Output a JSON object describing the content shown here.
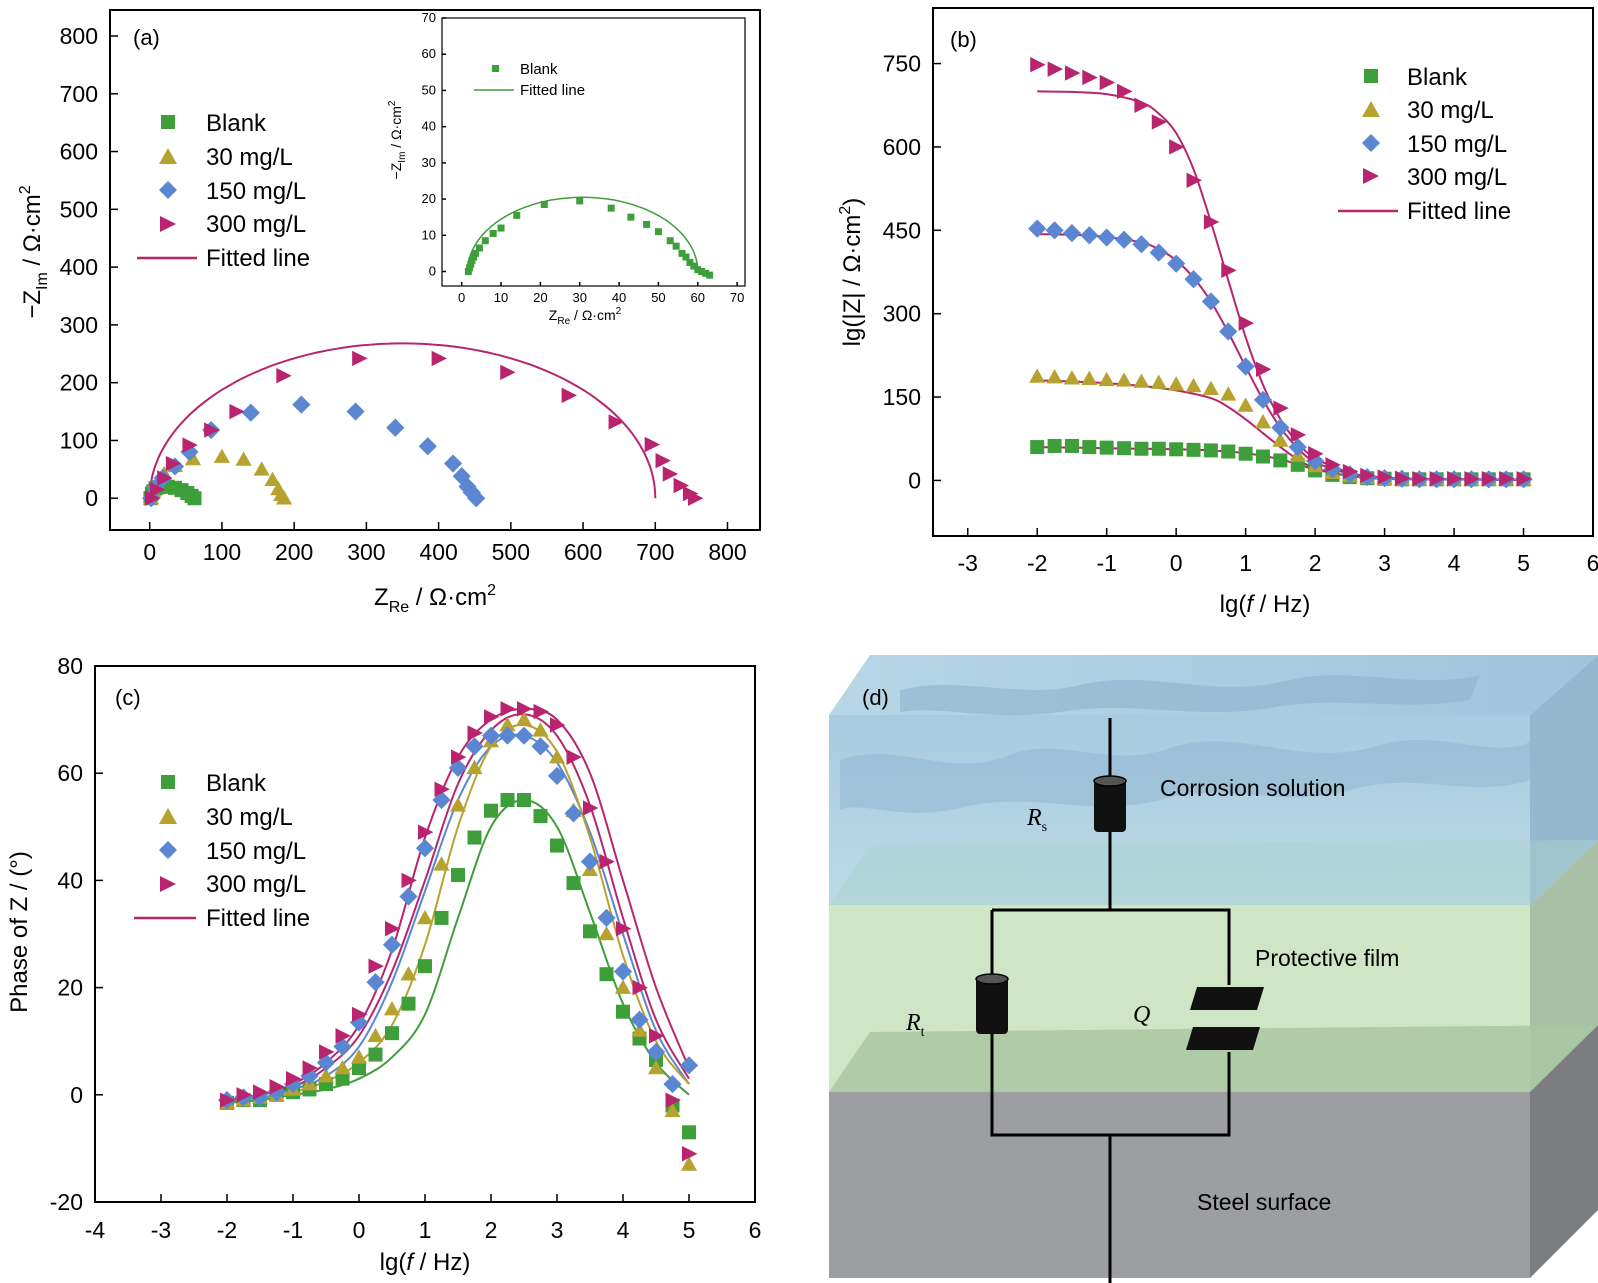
{
  "colors": {
    "blank": "#3e9e3a",
    "c30": "#b6a22f",
    "c150": "#5b86d2",
    "c300": "#b8246e",
    "fit_a_b_c": "#b8246e",
    "fit_inset": "#3e9e3a"
  },
  "panels": {
    "a": {
      "label": "(a)"
    },
    "b": {
      "label": "(b)"
    },
    "c": {
      "label": "(c)"
    },
    "d": {
      "label": "(d)",
      "corrosion_solution": "Corrosion solution",
      "protective_film": "Protective film",
      "steel_surface": "Steel surface",
      "rs": "R",
      "rs_sub": "s",
      "rt": "R",
      "rt_sub": "t",
      "q": "Q"
    }
  },
  "legend": {
    "blank": "Blank",
    "c30": "30   mg/L",
    "c150": "150 mg/L",
    "c300": "300 mg/L",
    "fitted": "Fitted line"
  },
  "chart_data": [
    {
      "id": "a",
      "type": "scatter",
      "title": "",
      "xlabel": "Z_Re / Ω·cm²",
      "ylabel": "−Z_Im / Ω·cm²",
      "xlim": [
        -55,
        845
      ],
      "ylim": [
        -55,
        845
      ],
      "xticks": [
        0,
        100,
        200,
        300,
        400,
        500,
        600,
        700,
        800
      ],
      "yticks": [
        0,
        100,
        200,
        300,
        400,
        500,
        600,
        700,
        800
      ],
      "series": [
        {
          "name": "Blank",
          "marker": "square",
          "x": [
            1,
            3,
            5,
            8,
            12,
            17,
            25,
            35,
            44,
            52,
            58,
            62
          ],
          "y": [
            0,
            8,
            12,
            17,
            19,
            20,
            20,
            18,
            14,
            9,
            4,
            0
          ]
        },
        {
          "name": "30   mg/L",
          "marker": "triangle",
          "x": [
            2,
            5,
            10,
            20,
            35,
            60,
            100,
            130,
            155,
            170,
            178,
            182,
            186
          ],
          "y": [
            0,
            12,
            25,
            42,
            56,
            68,
            72,
            67,
            50,
            32,
            16,
            6,
            0
          ]
        },
        {
          "name": "150 mg/L",
          "marker": "diamond",
          "x": [
            2,
            8,
            18,
            35,
            55,
            85,
            140,
            210,
            285,
            340,
            385,
            420,
            432,
            440,
            446,
            452
          ],
          "y": [
            0,
            18,
            35,
            55,
            80,
            118,
            148,
            162,
            150,
            122,
            90,
            60,
            38,
            20,
            10,
            0
          ]
        },
        {
          "name": "300 mg/L",
          "marker": "triangle-right",
          "x": [
            3,
            10,
            20,
            32,
            55,
            85,
            120,
            185,
            290,
            400,
            495,
            580,
            645,
            695,
            710,
            720,
            735,
            748,
            755
          ],
          "y": [
            0,
            15,
            35,
            60,
            92,
            118,
            150,
            212,
            242,
            242,
            218,
            178,
            132,
            93,
            65,
            42,
            22,
            8,
            0
          ]
        }
      ],
      "fits": [
        {
          "name": "Fitted line",
          "color": "fit_a_b_c",
          "type": "semicircle",
          "x_from": 0,
          "x_to": 700,
          "ymax": 268
        }
      ],
      "inset": {
        "xlabel": "Z_Re / Ω·cm²",
        "ylabel": "−Z_Im / Ω·cm²",
        "xlim": [
          -5,
          72
        ],
        "ylim": [
          -4,
          70
        ],
        "xticks": [
          0,
          10,
          20,
          30,
          40,
          50,
          60,
          70
        ],
        "yticks": [
          0,
          10,
          20,
          30,
          40,
          50,
          60,
          70
        ],
        "series": [
          {
            "name": "Blank",
            "marker": "square",
            "x": [
              1.7,
              2.0,
              2.3,
              2.6,
              3,
              3.5,
              4.5,
              6,
              8,
              10,
              14,
              21,
              30,
              38,
              43,
              47,
              50,
              53,
              54.5,
              56,
              57,
              58,
              59,
              60,
              61,
              62,
              63
            ],
            "y": [
              0,
              1,
              2,
              3,
              4,
              5,
              6.5,
              8.5,
              10.5,
              12,
              15.5,
              18.5,
              19.5,
              17.5,
              15,
              13,
              11,
              8.5,
              7,
              5,
              4,
              2.5,
              1.5,
              0.5,
              0,
              -0.5,
              -1
            ]
          }
        ],
        "fit": {
          "name": "Fitted line",
          "type": "semicircle",
          "x_from": 1.5,
          "x_to": 60,
          "ymax": 20.5
        },
        "legend": {
          "blank": "Blank",
          "fitted": "Fitted line"
        }
      }
    },
    {
      "id": "b",
      "type": "scatter",
      "title": "",
      "xlabel": "lg(f / Hz)",
      "ylabel": "lg(|Z| / Ω·cm²)",
      "xlim": [
        -3.5,
        6
      ],
      "ylim": [
        -100,
        850
      ],
      "xticks": [
        -3,
        -2,
        -1,
        0,
        1,
        2,
        3,
        4,
        5,
        6
      ],
      "yticks": [
        0,
        150,
        300,
        450,
        600,
        750
      ],
      "x": [
        -2,
        -1.75,
        -1.5,
        -1.25,
        -1,
        -0.75,
        -0.5,
        -0.25,
        0,
        0.25,
        0.5,
        0.75,
        1,
        1.25,
        1.5,
        1.75,
        2,
        2.25,
        2.5,
        2.75,
        3,
        3.25,
        3.5,
        3.75,
        4,
        4.25,
        4.5,
        4.75,
        5
      ],
      "series": [
        {
          "name": "Blank",
          "marker": "square",
          "y": [
            60,
            62,
            62,
            60,
            59,
            58,
            57,
            57,
            56,
            55,
            54,
            52,
            48,
            43,
            36,
            28,
            18,
            10,
            6,
            4,
            3,
            2,
            2,
            2,
            2,
            2,
            2,
            2,
            2
          ]
        },
        {
          "name": "30   mg/L",
          "marker": "triangle",
          "y": [
            187,
            186,
            184,
            183,
            181,
            180,
            178,
            176,
            173,
            170,
            165,
            155,
            135,
            105,
            72,
            45,
            26,
            14,
            8,
            5,
            3,
            2,
            2,
            2,
            2,
            2,
            2,
            2,
            2
          ]
        },
        {
          "name": "150 mg/L",
          "marker": "diamond",
          "y": [
            453,
            450,
            445,
            441,
            437,
            433,
            425,
            410,
            390,
            362,
            322,
            268,
            205,
            145,
            95,
            60,
            35,
            20,
            11,
            6,
            4,
            3,
            2,
            2,
            2,
            2,
            2,
            2,
            2
          ]
        },
        {
          "name": "300 mg/L",
          "marker": "triangle-right",
          "y": [
            748,
            740,
            733,
            725,
            716,
            700,
            675,
            645,
            600,
            540,
            465,
            378,
            283,
            200,
            130,
            82,
            48,
            28,
            16,
            9,
            6,
            4,
            3,
            3,
            3,
            3,
            3,
            3,
            3
          ]
        }
      ],
      "fits": [
        {
          "name": "Fitted line",
          "x": [
            -2,
            -1.5,
            -1,
            -0.5,
            -0.25,
            0,
            0.25,
            0.5,
            0.75,
            1,
            1.25,
            1.5,
            1.75,
            2,
            2.5,
            3,
            4,
            5
          ],
          "y": [
            700,
            699,
            695,
            680,
            660,
            625,
            560,
            465,
            360,
            258,
            172,
            110,
            68,
            40,
            14,
            5,
            2,
            1
          ]
        },
        {
          "name": "Fitted line",
          "x": [
            -2,
            -1.5,
            -1,
            -0.5,
            -0.25,
            0,
            0.25,
            0.5,
            0.75,
            1,
            1.25,
            1.5,
            1.75,
            2,
            2.5,
            3,
            4,
            5
          ],
          "y": [
            443,
            442,
            438,
            428,
            416,
            396,
            365,
            322,
            266,
            205,
            145,
            95,
            58,
            33,
            12,
            4,
            2,
            1
          ]
        },
        {
          "name": "Fitted line",
          "x": [
            -2,
            -1.5,
            -1,
            -0.5,
            0,
            0.5,
            0.75,
            1,
            1.25,
            1.5,
            1.75,
            2,
            2.5,
            3,
            4,
            5
          ],
          "y": [
            180,
            178,
            175,
            170,
            162,
            148,
            132,
            110,
            85,
            60,
            38,
            22,
            8,
            3,
            2,
            1
          ]
        },
        {
          "name": "Fitted line",
          "x": [
            -2,
            -1,
            0,
            0.5,
            1,
            1.5,
            2,
            2.5,
            3,
            4,
            5
          ],
          "y": [
            60,
            58,
            56,
            54,
            49,
            38,
            20,
            8,
            3,
            2,
            1
          ]
        }
      ]
    },
    {
      "id": "c",
      "type": "scatter",
      "title": "",
      "xlabel": "lg(f / Hz)",
      "ylabel": "Phase of Z / (°)",
      "xlim": [
        -4,
        6
      ],
      "ylim": [
        -20,
        80
      ],
      "xticks": [
        -4,
        -3,
        -2,
        -1,
        0,
        1,
        2,
        3,
        4,
        5,
        6
      ],
      "yticks": [
        -20,
        0,
        20,
        40,
        60,
        80
      ],
      "x": [
        -2,
        -1.75,
        -1.5,
        -1.25,
        -1,
        -0.75,
        -0.5,
        -0.25,
        0,
        0.25,
        0.5,
        0.75,
        1,
        1.25,
        1.5,
        1.75,
        2,
        2.25,
        2.5,
        2.75,
        3,
        3.25,
        3.5,
        3.75,
        4,
        4.25,
        4.5,
        4.75,
        5
      ],
      "series": [
        {
          "name": "Blank",
          "marker": "square",
          "y": [
            -1.5,
            -1,
            -1,
            0,
            0.5,
            1,
            2,
            3,
            5,
            7.5,
            11.5,
            17,
            24,
            33,
            41,
            48,
            53,
            55,
            55,
            52,
            46.5,
            39.5,
            30.5,
            22.5,
            15.5,
            10.5,
            6.5,
            -2,
            -7
          ]
        },
        {
          "name": "30   mg/L",
          "marker": "triangle",
          "y": [
            -1.5,
            -1,
            -0.5,
            0,
            1,
            2,
            3.5,
            5,
            7,
            11,
            16,
            22.5,
            33,
            43,
            54,
            61,
            66,
            69,
            70,
            68,
            63,
            53,
            42,
            30,
            20,
            12,
            5,
            -3,
            -13
          ]
        },
        {
          "name": "150 mg/L",
          "marker": "diamond",
          "y": [
            -1,
            -0.5,
            -0.5,
            0.5,
            2,
            3.5,
            6,
            9,
            13.5,
            21,
            28,
            37,
            46,
            55,
            61,
            65,
            67,
            67,
            67,
            65,
            59.5,
            52.5,
            43.5,
            33,
            23,
            14,
            8,
            2,
            5.5
          ]
        },
        {
          "name": "300 mg/L",
          "marker": "triangle-right",
          "y": [
            -1,
            0,
            0.5,
            1.5,
            3,
            5,
            8,
            11,
            15,
            24,
            31,
            40,
            49,
            57,
            63,
            67.5,
            70.5,
            72,
            72,
            71.5,
            69,
            63,
            53.5,
            43.5,
            31,
            20,
            11,
            -1,
            -11
          ]
        }
      ],
      "fits": [
        {
          "name": "Fitted line",
          "x": [
            -2,
            -1.5,
            -1,
            -0.5,
            0,
            0.5,
            1,
            1.5,
            2,
            2.5,
            3,
            3.5,
            4,
            4.5,
            5
          ],
          "y": [
            -1,
            0,
            1.5,
            5,
            11,
            23,
            40,
            58,
            68,
            71,
            67,
            54,
            33,
            14,
            3
          ]
        },
        {
          "name": "Fitted line",
          "x": [
            -2,
            -1.5,
            -1,
            -0.5,
            0,
            0.5,
            1,
            1.5,
            2,
            2.5,
            3,
            3.5,
            4,
            4.5,
            5
          ],
          "y": [
            -1,
            0,
            1,
            3.5,
            9,
            21,
            38,
            55,
            65,
            67,
            62,
            49,
            30,
            12,
            2
          ]
        },
        {
          "name": "Fitted line",
          "x": [
            -2,
            -1.5,
            -1,
            -0.5,
            0,
            0.5,
            1,
            1.5,
            2,
            2.5,
            3,
            3.5,
            4,
            4.5,
            5
          ],
          "y": [
            -1.5,
            -0.5,
            0.5,
            2.5,
            6,
            13,
            28,
            50,
            65,
            69,
            64,
            48,
            26,
            10,
            2
          ]
        },
        {
          "name": "Fitted line",
          "x": [
            -2,
            -1.5,
            -1,
            -0.5,
            0,
            0.5,
            1,
            1.5,
            2,
            2.5,
            3,
            3.5,
            4,
            4.5,
            5
          ],
          "y": [
            -1.5,
            -1,
            0,
            1,
            3,
            7,
            15,
            33,
            50,
            55,
            50,
            34,
            17,
            6,
            0
          ]
        },
        {
          "name": "Fitted line",
          "x": [
            -2,
            -1.5,
            -1,
            -0.5,
            0,
            0.5,
            1,
            1.5,
            2,
            2.5,
            3,
            3.5,
            4,
            4.5,
            5
          ],
          "y": [
            -1,
            0,
            2,
            6,
            13,
            27,
            48,
            63,
            70,
            72,
            70,
            60,
            40,
            20,
            5
          ]
        }
      ]
    }
  ]
}
